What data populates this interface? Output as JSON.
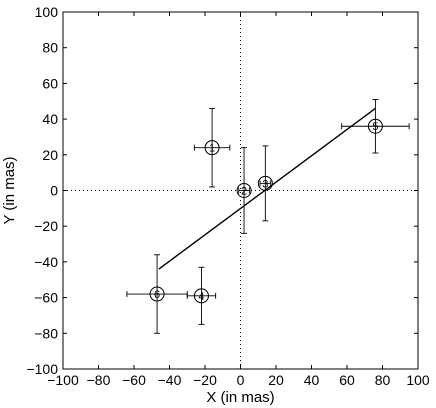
{
  "chart_data": {
    "type": "scatter",
    "title": "",
    "xlabel": "X (in mas)",
    "ylabel": "Y (in mas)",
    "xlim": [
      -100,
      100
    ],
    "ylim": [
      -100,
      100
    ],
    "xticks": [
      -100,
      -80,
      -60,
      -40,
      -20,
      0,
      20,
      40,
      60,
      80,
      100
    ],
    "yticks": [
      -100,
      -80,
      -60,
      -40,
      -20,
      0,
      20,
      40,
      60,
      80,
      100
    ],
    "grid": false,
    "zero_lines": "dotted",
    "points": [
      {
        "label": "1",
        "x": -16,
        "y": 24,
        "xerr": 10,
        "yerr": 22
      },
      {
        "label": "2",
        "x": 2,
        "y": 0,
        "xerr": 3,
        "yerr": 24
      },
      {
        "label": "3",
        "x": 14,
        "y": 4,
        "xerr": 3,
        "yerr": 21
      },
      {
        "label": "4",
        "x": -22,
        "y": -59,
        "xerr": 8,
        "yerr": 16
      },
      {
        "label": "5",
        "x": 76,
        "y": 36,
        "xerr": 19,
        "yerr": 15
      },
      {
        "label": "6",
        "x": -47,
        "y": -58,
        "xerr": 17,
        "yerr": 22
      }
    ],
    "fit_line": {
      "x": [
        -46,
        76
      ],
      "y": [
        -44,
        46
      ]
    },
    "colors": {
      "marks": "#000000",
      "background": "#ffffff"
    }
  }
}
